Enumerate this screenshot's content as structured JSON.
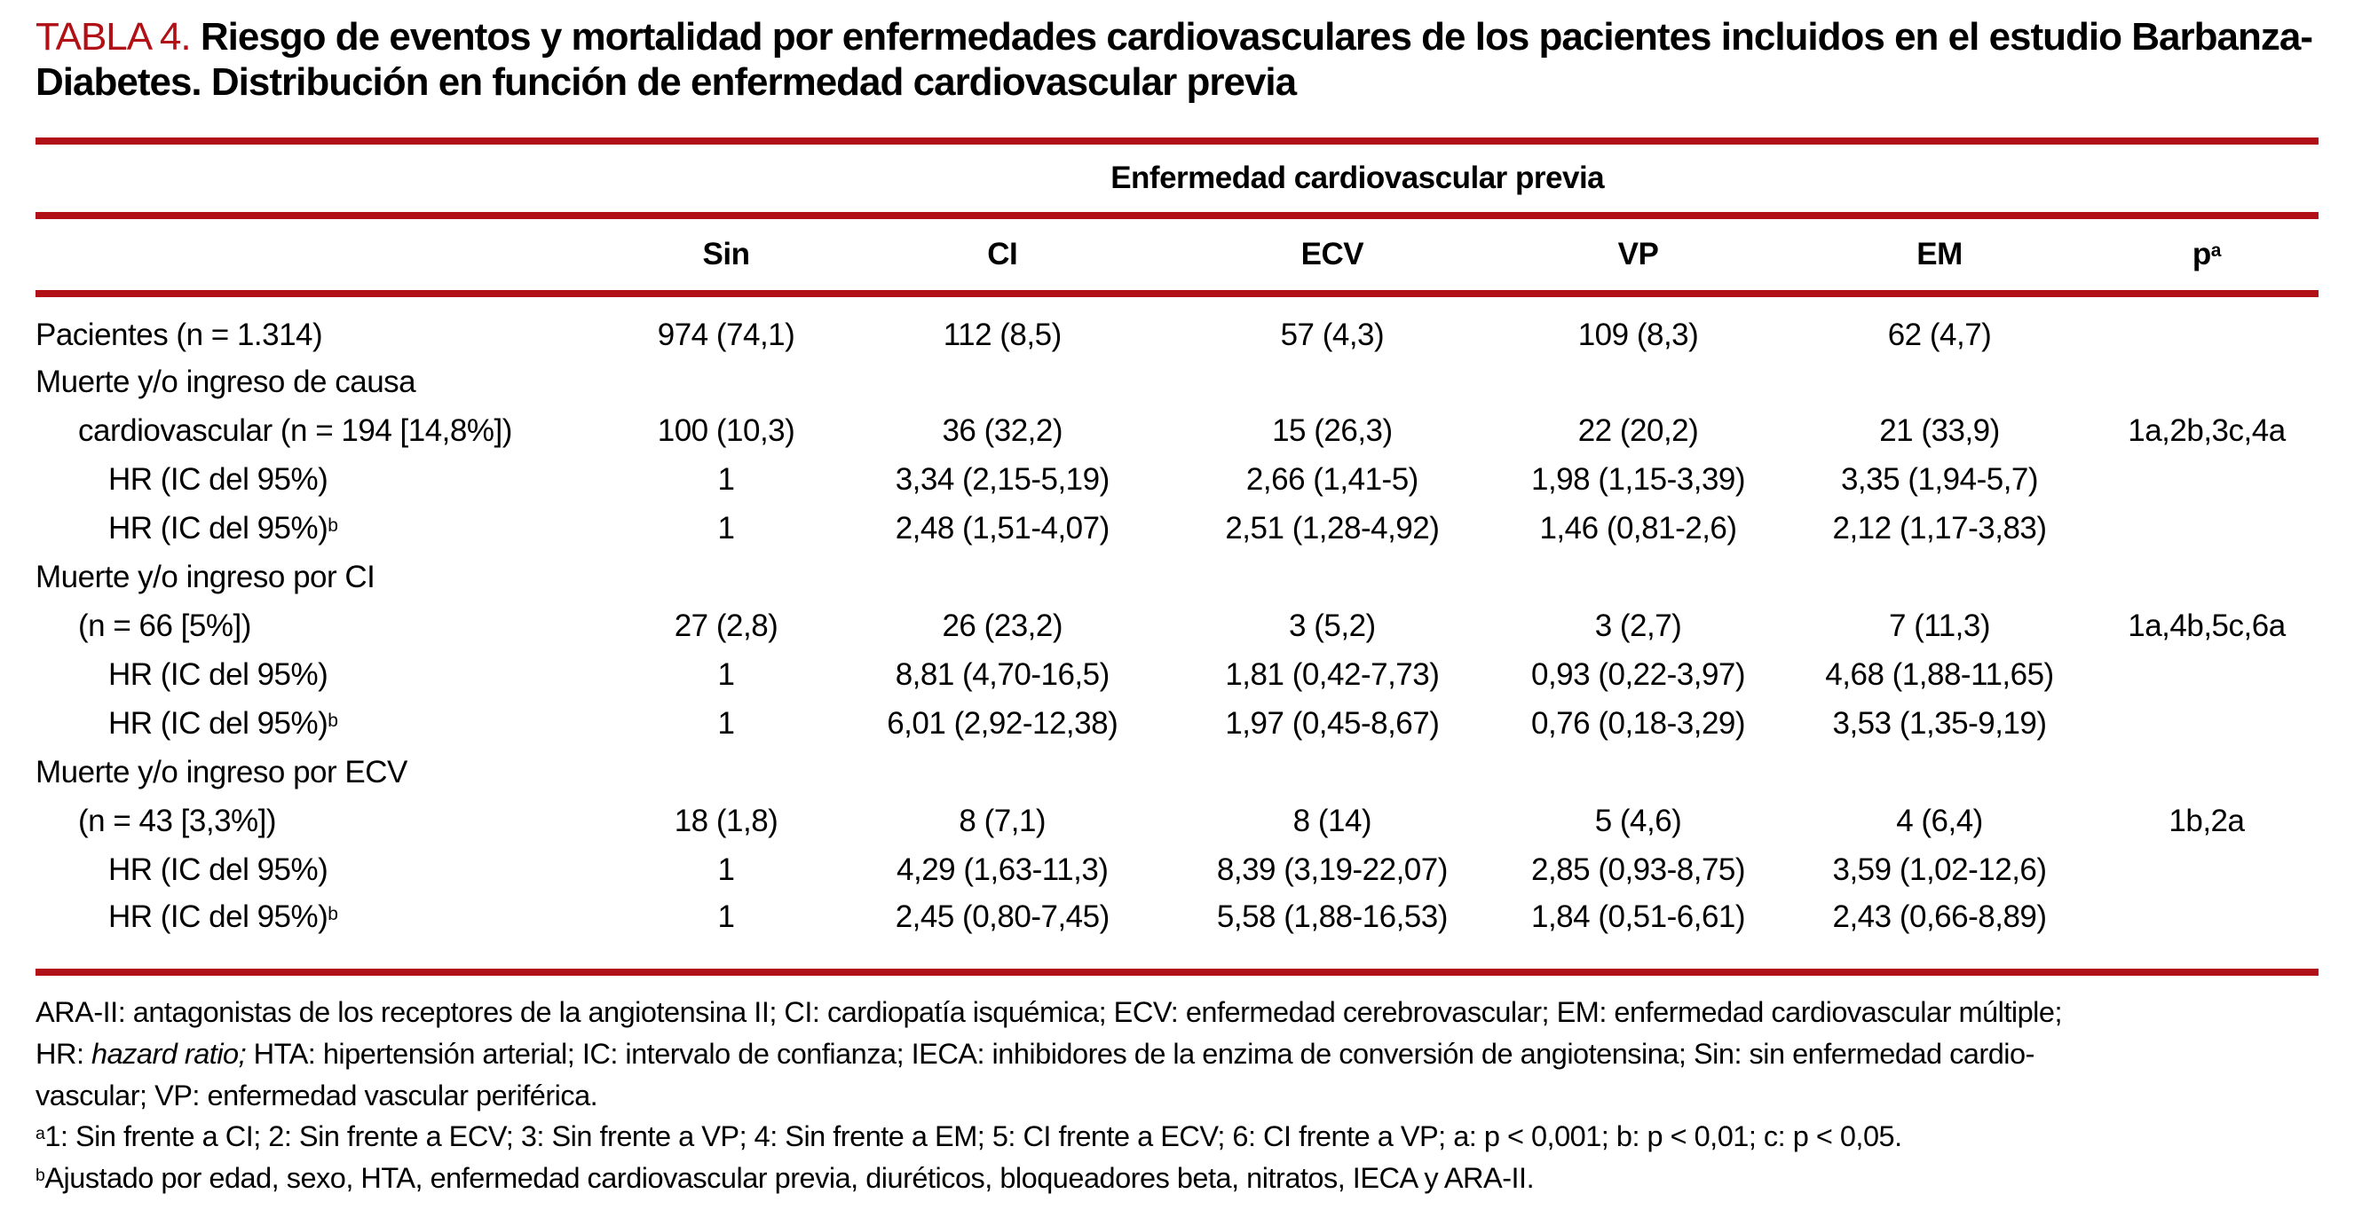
{
  "colors": {
    "accent_red": "#B01016",
    "text": "#000000",
    "background": "#FFFFFF"
  },
  "title": {
    "tag": "TABLA 4.",
    "text": " Riesgo de eventos y mortalidad por enfermedades cardiovasculares de los pacientes incluidos en el estudio Barbanza-Diabetes. Distribución en función de enfermedad cardiovascular previa"
  },
  "table": {
    "group_header": "Enfermedad cardiovascular previa",
    "columns": [
      "Sin",
      "CI",
      "ECV",
      "VP",
      "EM"
    ],
    "p_header": "p",
    "p_header_sup": "a",
    "rows": [
      {
        "label": "Pacientes (n = 1.314)",
        "sup": "",
        "indent": 0,
        "cells": [
          "974 (74,1)",
          "112 (8,5)",
          "57 (4,3)",
          "109 (8,3)",
          "62 (4,7)",
          ""
        ]
      },
      {
        "label": "Muerte y/o ingreso de causa",
        "sup": "",
        "indent": 0,
        "cells": [
          "",
          "",
          "",
          "",
          "",
          ""
        ]
      },
      {
        "label": "cardiovascular (n = 194 [14,8%])",
        "sup": "",
        "indent": 1,
        "cells": [
          "100 (10,3)",
          "36 (32,2)",
          "15 (26,3)",
          "22 (20,2)",
          "21 (33,9)",
          "1a,2b,3c,4a"
        ]
      },
      {
        "label": "HR (IC del 95%)",
        "sup": "",
        "indent": 2,
        "cells": [
          "1",
          "3,34 (2,15-5,19)",
          "2,66 (1,41-5)",
          "1,98 (1,15-3,39)",
          "3,35 (1,94-5,7)",
          ""
        ]
      },
      {
        "label": "HR (IC del 95%)",
        "sup": "b",
        "indent": 2,
        "cells": [
          "1",
          "2,48 (1,51-4,07)",
          "2,51 (1,28-4,92)",
          "1,46 (0,81-2,6)",
          "2,12 (1,17-3,83)",
          ""
        ]
      },
      {
        "label": "Muerte y/o ingreso por CI",
        "sup": "",
        "indent": 0,
        "cells": [
          "",
          "",
          "",
          "",
          "",
          ""
        ]
      },
      {
        "label": "(n = 66 [5%])",
        "sup": "",
        "indent": 1,
        "cells": [
          "27 (2,8)",
          "26 (23,2)",
          "3 (5,2)",
          "3 (2,7)",
          "7 (11,3)",
          "1a,4b,5c,6a"
        ]
      },
      {
        "label": "HR (IC del 95%)",
        "sup": "",
        "indent": 2,
        "cells": [
          "1",
          "8,81 (4,70-16,5)",
          "1,81 (0,42-7,73)",
          "0,93 (0,22-3,97)",
          "4,68 (1,88-11,65)",
          ""
        ]
      },
      {
        "label": "HR (IC del 95%)",
        "sup": "b",
        "indent": 2,
        "cells": [
          "1",
          "6,01 (2,92-12,38)",
          "1,97 (0,45-8,67)",
          "0,76 (0,18-3,29)",
          "3,53 (1,35-9,19)",
          ""
        ]
      },
      {
        "label": "Muerte y/o ingreso por ECV",
        "sup": "",
        "indent": 0,
        "cells": [
          "",
          "",
          "",
          "",
          "",
          ""
        ]
      },
      {
        "label": "(n = 43 [3,3%])",
        "sup": "",
        "indent": 1,
        "cells": [
          "18 (1,8)",
          "8 (7,1)",
          "8 (14)",
          "5 (4,6)",
          "4 (6,4)",
          "1b,2a"
        ]
      },
      {
        "label": "HR (IC del 95%)",
        "sup": "",
        "indent": 2,
        "cells": [
          "1",
          "4,29 (1,63-11,3)",
          "8,39 (3,19-22,07)",
          "2,85 (0,93-8,75)",
          "3,59 (1,02-12,6)",
          ""
        ]
      },
      {
        "label": "HR (IC del 95%)",
        "sup": "b",
        "indent": 2,
        "cells": [
          "1",
          "2,45 (0,80-7,45)",
          "5,58 (1,88-16,53)",
          "1,84 (0,51-6,61)",
          "2,43 (0,66-8,89)",
          ""
        ]
      }
    ]
  },
  "footnotes": {
    "abbrev_line1": "ARA-II: antagonistas de los receptores de la angiotensina II; CI: cardiopatía isquémica; ECV: enfermedad cerebrovascular; EM: enfermedad cardiovascular múltiple;",
    "abbrev_line2_pre": "HR: ",
    "abbrev_line2_italic": "hazard ratio;",
    "abbrev_line2_post": " HTA: hipertensión arterial; IC: intervalo de confianza; IECA: inhibidores de la enzima de conversión de angiotensina; Sin: sin enfermedad cardio-",
    "abbrev_line3": "vascular; VP: enfermedad vascular periférica.",
    "note_a_sup": "a",
    "note_a": "1: Sin frente a CI; 2: Sin frente a ECV; 3: Sin frente a VP; 4: Sin frente a EM; 5: CI frente a ECV; 6: CI frente a VP; a: p < 0,001; b: p < 0,01; c: p < 0,05.",
    "note_b_sup": "b",
    "note_b": "Ajustado por edad, sexo, HTA, enfermedad cardiovascular previa, diuréticos, bloqueadores beta, nitratos, IECA y ARA-II."
  }
}
